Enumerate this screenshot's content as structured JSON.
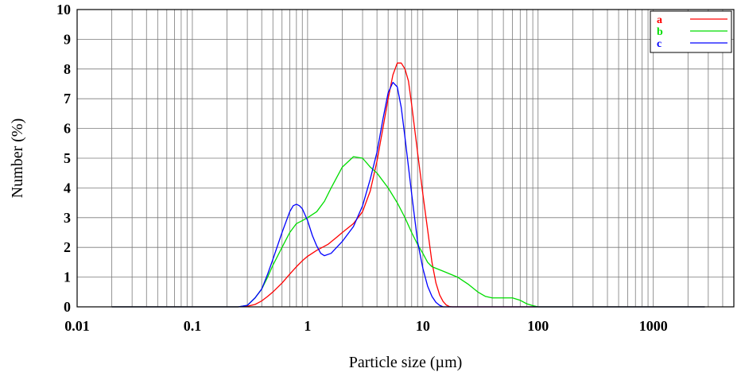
{
  "chart_data": {
    "type": "line",
    "xlabel": "Particle size (µm)",
    "ylabel": "Number (%)",
    "x_scale": "log",
    "xlim": [
      0.01,
      5000
    ],
    "ylim": [
      0,
      10
    ],
    "grid": true,
    "legend_placement": "top-right",
    "x_tick_labels": [
      "0.01",
      "0.1",
      "1",
      "10",
      "100",
      "1000"
    ],
    "x_ticks": [
      0.01,
      0.1,
      1,
      10,
      100,
      1000
    ],
    "y_tick_labels": [
      "0",
      "1",
      "2",
      "3",
      "4",
      "5",
      "6",
      "7",
      "8",
      "9",
      "10"
    ],
    "y_ticks": [
      0,
      1,
      2,
      3,
      4,
      5,
      6,
      7,
      8,
      9,
      10
    ],
    "series": [
      {
        "name": "a",
        "color": "#ff0000",
        "points": [
          [
            0.02,
            0
          ],
          [
            0.25,
            0
          ],
          [
            0.3,
            0.02
          ],
          [
            0.35,
            0.08
          ],
          [
            0.4,
            0.2
          ],
          [
            0.45,
            0.35
          ],
          [
            0.5,
            0.5
          ],
          [
            0.6,
            0.8
          ],
          [
            0.7,
            1.1
          ],
          [
            0.8,
            1.35
          ],
          [
            0.9,
            1.55
          ],
          [
            1.0,
            1.7
          ],
          [
            1.2,
            1.9
          ],
          [
            1.5,
            2.1
          ],
          [
            1.8,
            2.35
          ],
          [
            2.0,
            2.5
          ],
          [
            2.5,
            2.8
          ],
          [
            3.0,
            3.2
          ],
          [
            3.5,
            3.9
          ],
          [
            4.0,
            4.9
          ],
          [
            4.5,
            6.0
          ],
          [
            5.0,
            7.0
          ],
          [
            5.5,
            7.8
          ],
          [
            6.0,
            8.2
          ],
          [
            6.5,
            8.2
          ],
          [
            7.0,
            8.0
          ],
          [
            7.5,
            7.6
          ],
          [
            8.0,
            6.8
          ],
          [
            9.0,
            5.2
          ],
          [
            10.0,
            3.8
          ],
          [
            11.0,
            2.6
          ],
          [
            12.0,
            1.5
          ],
          [
            13.0,
            0.8
          ],
          [
            14.0,
            0.4
          ],
          [
            15.0,
            0.18
          ],
          [
            16.0,
            0.06
          ],
          [
            17.0,
            0.01
          ],
          [
            18.0,
            0
          ],
          [
            2800,
            0
          ]
        ]
      },
      {
        "name": "b",
        "color": "#00dd00",
        "points": [
          [
            0.02,
            0
          ],
          [
            0.25,
            0
          ],
          [
            0.3,
            0.05
          ],
          [
            0.35,
            0.3
          ],
          [
            0.4,
            0.6
          ],
          [
            0.45,
            1.0
          ],
          [
            0.5,
            1.4
          ],
          [
            0.6,
            2.0
          ],
          [
            0.7,
            2.5
          ],
          [
            0.8,
            2.8
          ],
          [
            0.9,
            2.9
          ],
          [
            1.0,
            3.0
          ],
          [
            1.2,
            3.2
          ],
          [
            1.4,
            3.55
          ],
          [
            1.6,
            4.0
          ],
          [
            2.0,
            4.7
          ],
          [
            2.5,
            5.05
          ],
          [
            3.0,
            5.0
          ],
          [
            3.5,
            4.7
          ],
          [
            4.0,
            4.5
          ],
          [
            5.0,
            4.0
          ],
          [
            6.0,
            3.5
          ],
          [
            7.0,
            3.0
          ],
          [
            8.0,
            2.5
          ],
          [
            9.0,
            2.1
          ],
          [
            10.0,
            1.8
          ],
          [
            11.0,
            1.5
          ],
          [
            12.0,
            1.35
          ],
          [
            15.0,
            1.2
          ],
          [
            20.0,
            1.0
          ],
          [
            25.0,
            0.75
          ],
          [
            30.0,
            0.5
          ],
          [
            35.0,
            0.35
          ],
          [
            40.0,
            0.3
          ],
          [
            60.0,
            0.3
          ],
          [
            70.0,
            0.22
          ],
          [
            80.0,
            0.1
          ],
          [
            90.0,
            0.04
          ],
          [
            100.0,
            0
          ],
          [
            2800,
            0
          ]
        ]
      },
      {
        "name": "c",
        "color": "#0000ff",
        "points": [
          [
            0.02,
            0
          ],
          [
            0.25,
            0
          ],
          [
            0.3,
            0.05
          ],
          [
            0.35,
            0.3
          ],
          [
            0.4,
            0.6
          ],
          [
            0.45,
            1.1
          ],
          [
            0.5,
            1.6
          ],
          [
            0.6,
            2.5
          ],
          [
            0.7,
            3.2
          ],
          [
            0.75,
            3.4
          ],
          [
            0.8,
            3.45
          ],
          [
            0.85,
            3.4
          ],
          [
            0.9,
            3.3
          ],
          [
            1.0,
            2.9
          ],
          [
            1.1,
            2.4
          ],
          [
            1.2,
            2.05
          ],
          [
            1.3,
            1.8
          ],
          [
            1.4,
            1.72
          ],
          [
            1.6,
            1.8
          ],
          [
            2.0,
            2.2
          ],
          [
            2.5,
            2.7
          ],
          [
            3.0,
            3.4
          ],
          [
            3.5,
            4.3
          ],
          [
            4.0,
            5.2
          ],
          [
            4.5,
            6.3
          ],
          [
            5.0,
            7.2
          ],
          [
            5.5,
            7.55
          ],
          [
            6.0,
            7.4
          ],
          [
            6.5,
            6.7
          ],
          [
            7.0,
            5.7
          ],
          [
            8.0,
            3.8
          ],
          [
            9.0,
            2.2
          ],
          [
            10.0,
            1.3
          ],
          [
            11.0,
            0.7
          ],
          [
            12.0,
            0.35
          ],
          [
            13.0,
            0.15
          ],
          [
            14.0,
            0.05
          ],
          [
            15.0,
            0
          ],
          [
            2800,
            0
          ]
        ]
      }
    ]
  }
}
